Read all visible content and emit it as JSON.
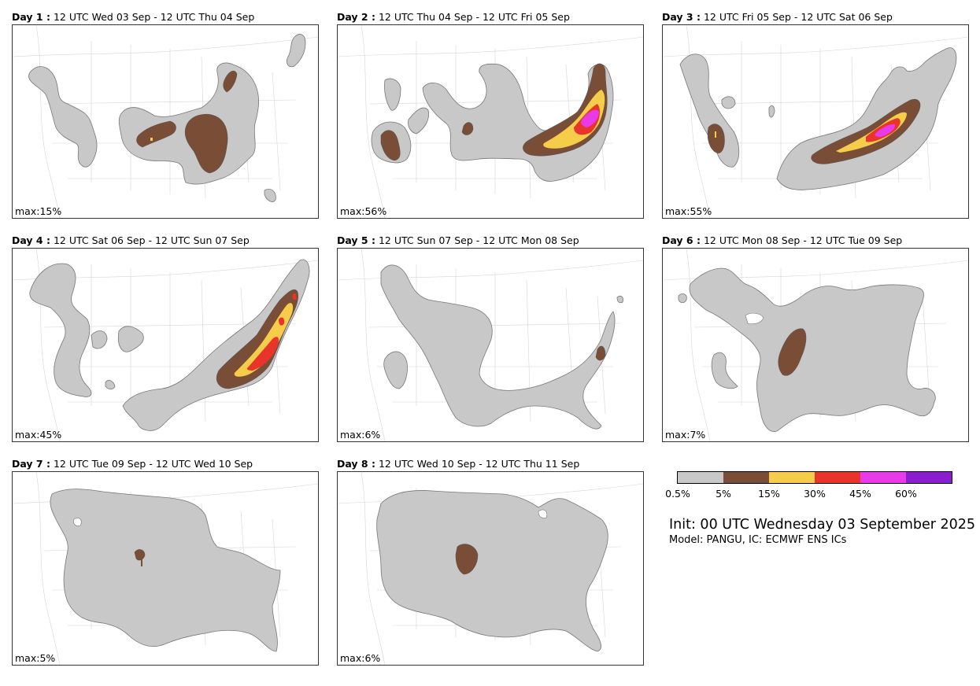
{
  "panels": [
    {
      "day": "Day 1 :",
      "period": "12 UTC Wed 03 Sep - 12 UTC Thu 04 Sep",
      "max": "max:15%"
    },
    {
      "day": "Day 2 :",
      "period": "12 UTC Thu 04 Sep - 12 UTC Fri 05 Sep",
      "max": "max:56%"
    },
    {
      "day": "Day 3 :",
      "period": "12 UTC Fri 05 Sep - 12 UTC Sat 06 Sep",
      "max": "max:55%"
    },
    {
      "day": "Day 4 :",
      "period": "12 UTC Sat 06 Sep - 12 UTC Sun 07 Sep",
      "max": "max:45%"
    },
    {
      "day": "Day 5 :",
      "period": "12 UTC Sun 07 Sep - 12 UTC Mon 08 Sep",
      "max": "max:6%"
    },
    {
      "day": "Day 6 :",
      "period": "12 UTC Mon 08 Sep - 12 UTC Tue 09 Sep",
      "max": "max:7%"
    },
    {
      "day": "Day 7 :",
      "period": "12 UTC Tue 09 Sep - 12 UTC Wed 10 Sep",
      "max": "max:5%"
    },
    {
      "day": "Day 8 :",
      "period": "12 UTC Wed 10 Sep - 12 UTC Thu 11 Sep",
      "max": "max:6%"
    }
  ],
  "colorbar": {
    "colors": [
      "#c8c8c8",
      "#7a4e36",
      "#f5cd4a",
      "#e8342a",
      "#e83ae8",
      "#8a1ecf"
    ],
    "ticks": [
      "0.5%",
      "5%",
      "15%",
      "30%",
      "45%",
      "60%"
    ]
  },
  "init": "Init: 00 UTC Wednesday 03 September 2025",
  "model": "Model: PANGU, IC: ECMWF ENS ICs"
}
